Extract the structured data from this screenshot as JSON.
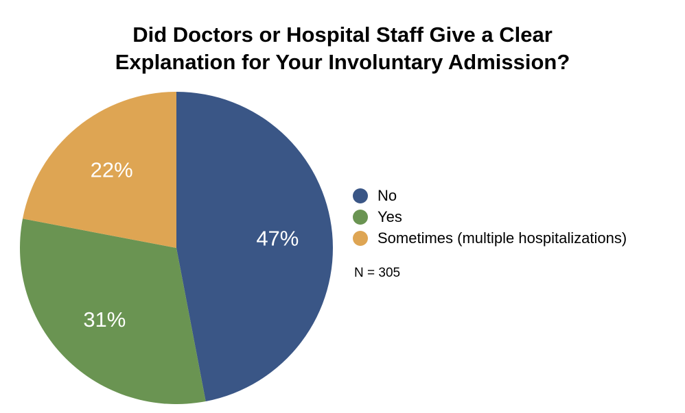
{
  "chart_data": {
    "type": "pie",
    "title_lines": [
      "Did Doctors or Hospital Staff Give a Clear",
      "Explanation for Your Involuntary Admission?"
    ],
    "slices": [
      {
        "name": "No",
        "value": 47,
        "label": "47%",
        "color": "#3a5686"
      },
      {
        "name": "Yes",
        "value": 31,
        "label": "31%",
        "color": "#6a9452"
      },
      {
        "name": "Sometimes (multiple hospitalizations)",
        "value": 22,
        "label": "22%",
        "color": "#dea553"
      }
    ],
    "legend_position": "right",
    "note": "N = 305"
  }
}
